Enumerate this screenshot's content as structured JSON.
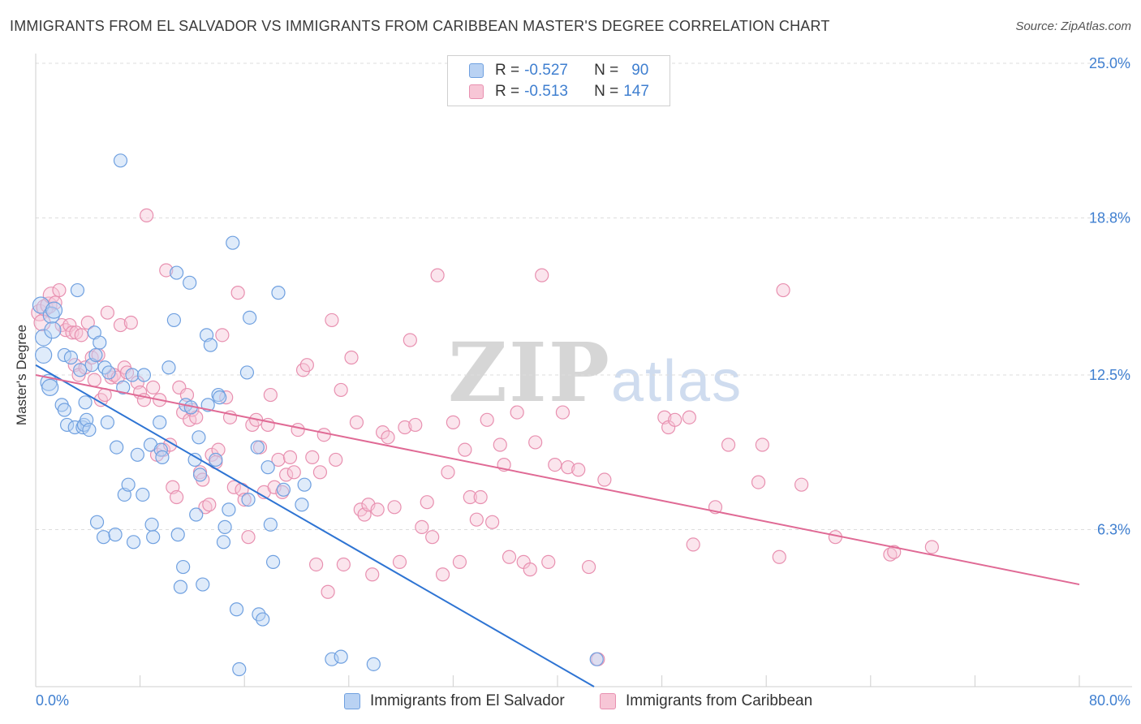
{
  "header": {
    "title": "IMMIGRANTS FROM EL SALVADOR VS IMMIGRANTS FROM CARIBBEAN MASTER'S DEGREE CORRELATION CHART",
    "source": "Source: ZipAtlas.com"
  },
  "watermark": {
    "part1": "ZIP",
    "part2": "atlas"
  },
  "colors": {
    "blue": "#6fa0e0",
    "blue_fill": "#b9d2f3",
    "blue_line": "#2e74d3",
    "pink": "#e890b0",
    "pink_fill": "#f7c6d6",
    "pink_line": "#e06a95",
    "accent_text": "#3f7fd0",
    "grid": "#dddddd"
  },
  "legend": {
    "rows": [
      {
        "r_label": "R =",
        "r_value": "-0.527",
        "n_label": "N =",
        "n_value": "90"
      },
      {
        "r_label": "R =",
        "r_value": "-0.513",
        "n_label": "N =",
        "n_value": "147"
      }
    ]
  },
  "bottom_legend": {
    "series1": "Immigrants from El Salvador",
    "series2": "Immigrants from Caribbean"
  },
  "chart_data": {
    "type": "scatter",
    "title": "IMMIGRANTS FROM EL SALVADOR VS IMMIGRANTS FROM CARIBBEAN MASTER'S DEGREE CORRELATION CHART",
    "xlabel": "",
    "ylabel": "Master's Degree",
    "xlim": [
      0,
      80
    ],
    "ylim": [
      0,
      25
    ],
    "x_tick_labels": [
      "0.0%",
      "80.0%"
    ],
    "y_ticks": [
      6.3,
      12.5,
      18.8,
      25.0
    ],
    "y_tick_labels": [
      "6.3%",
      "12.5%",
      "18.8%",
      "25.0%"
    ],
    "grid": true,
    "series": [
      {
        "name": "Immigrants from El Salvador",
        "R": -0.527,
        "N": 90,
        "trend": {
          "x": [
            0,
            42.8
          ],
          "y": [
            12.9,
            0
          ]
        },
        "points": [
          [
            0.4,
            15.3
          ],
          [
            0.6,
            14.0
          ],
          [
            0.6,
            13.3
          ],
          [
            1.0,
            12.2
          ],
          [
            1.1,
            12.0
          ],
          [
            1.2,
            14.9
          ],
          [
            1.3,
            14.3
          ],
          [
            1.4,
            15.1
          ],
          [
            2.0,
            11.3
          ],
          [
            2.2,
            13.3
          ],
          [
            2.2,
            11.1
          ],
          [
            2.4,
            10.5
          ],
          [
            2.7,
            13.2
          ],
          [
            3.0,
            10.4
          ],
          [
            3.2,
            15.9
          ],
          [
            3.4,
            12.7
          ],
          [
            3.6,
            10.4
          ],
          [
            3.7,
            10.5
          ],
          [
            3.8,
            11.4
          ],
          [
            3.9,
            10.7
          ],
          [
            4.1,
            10.3
          ],
          [
            4.3,
            12.9
          ],
          [
            4.5,
            14.2
          ],
          [
            4.6,
            13.3
          ],
          [
            4.7,
            6.6
          ],
          [
            4.9,
            13.8
          ],
          [
            5.2,
            6.0
          ],
          [
            5.3,
            12.8
          ],
          [
            5.5,
            10.6
          ],
          [
            5.6,
            12.6
          ],
          [
            6.1,
            6.1
          ],
          [
            6.2,
            9.6
          ],
          [
            6.5,
            21.1
          ],
          [
            6.7,
            12.0
          ],
          [
            6.8,
            7.7
          ],
          [
            7.1,
            8.1
          ],
          [
            7.4,
            12.5
          ],
          [
            7.5,
            5.8
          ],
          [
            7.8,
            9.3
          ],
          [
            8.2,
            7.7
          ],
          [
            8.3,
            12.5
          ],
          [
            8.8,
            9.7
          ],
          [
            8.9,
            6.5
          ],
          [
            9.0,
            6.0
          ],
          [
            9.5,
            10.6
          ],
          [
            9.6,
            9.5
          ],
          [
            9.7,
            9.2
          ],
          [
            10.2,
            12.8
          ],
          [
            10.6,
            14.7
          ],
          [
            10.8,
            16.6
          ],
          [
            10.9,
            6.1
          ],
          [
            11.1,
            4.0
          ],
          [
            11.3,
            4.8
          ],
          [
            11.5,
            11.3
          ],
          [
            11.8,
            16.2
          ],
          [
            11.9,
            11.2
          ],
          [
            12.2,
            9.1
          ],
          [
            12.3,
            6.9
          ],
          [
            12.5,
            10.0
          ],
          [
            12.6,
            8.5
          ],
          [
            12.8,
            4.1
          ],
          [
            13.1,
            14.1
          ],
          [
            13.2,
            11.3
          ],
          [
            13.4,
            13.7
          ],
          [
            13.8,
            9.1
          ],
          [
            14.0,
            11.7
          ],
          [
            14.1,
            11.6
          ],
          [
            14.4,
            5.8
          ],
          [
            14.5,
            6.4
          ],
          [
            14.8,
            7.1
          ],
          [
            15.1,
            17.8
          ],
          [
            15.4,
            3.1
          ],
          [
            15.6,
            0.7
          ],
          [
            16.2,
            12.6
          ],
          [
            16.3,
            7.5
          ],
          [
            16.4,
            14.8
          ],
          [
            17.0,
            9.6
          ],
          [
            17.1,
            2.9
          ],
          [
            17.4,
            2.7
          ],
          [
            17.8,
            8.8
          ],
          [
            18.0,
            6.5
          ],
          [
            18.2,
            5.0
          ],
          [
            18.6,
            15.8
          ],
          [
            19.0,
            7.9
          ],
          [
            20.4,
            7.3
          ],
          [
            20.6,
            8.1
          ],
          [
            22.7,
            1.1
          ],
          [
            23.4,
            1.2
          ],
          [
            25.9,
            0.9
          ],
          [
            43.0,
            1.1
          ]
        ]
      },
      {
        "name": "Immigrants from Caribbean",
        "R": -0.513,
        "N": 147,
        "trend": {
          "x": [
            0,
            80
          ],
          "y": [
            12.5,
            4.1
          ]
        },
        "points": [
          [
            0.3,
            15.0
          ],
          [
            0.5,
            14.6
          ],
          [
            0.7,
            15.2
          ],
          [
            1.0,
            15.3
          ],
          [
            1.2,
            15.7
          ],
          [
            1.5,
            15.4
          ],
          [
            1.8,
            15.9
          ],
          [
            2.0,
            14.5
          ],
          [
            2.3,
            14.3
          ],
          [
            2.6,
            14.5
          ],
          [
            2.8,
            14.2
          ],
          [
            3.0,
            12.9
          ],
          [
            3.1,
            14.2
          ],
          [
            3.3,
            12.5
          ],
          [
            3.5,
            14.1
          ],
          [
            3.8,
            12.8
          ],
          [
            4.0,
            14.6
          ],
          [
            4.3,
            13.2
          ],
          [
            4.5,
            12.3
          ],
          [
            4.8,
            13.3
          ],
          [
            5.0,
            11.5
          ],
          [
            5.3,
            11.7
          ],
          [
            5.5,
            15.0
          ],
          [
            5.8,
            12.4
          ],
          [
            6.0,
            12.5
          ],
          [
            6.3,
            12.4
          ],
          [
            6.5,
            14.5
          ],
          [
            6.8,
            12.8
          ],
          [
            7.0,
            12.6
          ],
          [
            7.3,
            14.6
          ],
          [
            7.8,
            12.2
          ],
          [
            8.0,
            11.8
          ],
          [
            8.3,
            11.5
          ],
          [
            8.5,
            18.9
          ],
          [
            9.0,
            12.0
          ],
          [
            9.3,
            9.3
          ],
          [
            9.5,
            11.5
          ],
          [
            9.8,
            9.5
          ],
          [
            10.0,
            16.7
          ],
          [
            10.3,
            9.7
          ],
          [
            10.5,
            8.0
          ],
          [
            10.8,
            7.6
          ],
          [
            11.0,
            12.0
          ],
          [
            11.3,
            11.0
          ],
          [
            11.6,
            11.7
          ],
          [
            11.8,
            10.7
          ],
          [
            12.0,
            11.1
          ],
          [
            12.3,
            10.8
          ],
          [
            12.6,
            8.6
          ],
          [
            12.8,
            8.3
          ],
          [
            13.0,
            7.2
          ],
          [
            13.3,
            7.3
          ],
          [
            13.5,
            9.3
          ],
          [
            13.8,
            9.0
          ],
          [
            14.0,
            9.5
          ],
          [
            14.3,
            14.1
          ],
          [
            14.6,
            11.6
          ],
          [
            14.9,
            10.8
          ],
          [
            15.2,
            8.0
          ],
          [
            15.5,
            15.8
          ],
          [
            15.8,
            7.9
          ],
          [
            16.0,
            7.5
          ],
          [
            16.3,
            6.0
          ],
          [
            16.6,
            10.5
          ],
          [
            16.9,
            10.7
          ],
          [
            17.2,
            9.6
          ],
          [
            17.5,
            7.8
          ],
          [
            17.8,
            10.5
          ],
          [
            18.0,
            11.7
          ],
          [
            18.3,
            8.0
          ],
          [
            18.6,
            9.1
          ],
          [
            18.9,
            7.8
          ],
          [
            19.2,
            8.5
          ],
          [
            19.5,
            9.2
          ],
          [
            19.8,
            8.6
          ],
          [
            20.1,
            10.3
          ],
          [
            20.5,
            12.7
          ],
          [
            20.8,
            12.9
          ],
          [
            21.2,
            9.2
          ],
          [
            21.5,
            4.9
          ],
          [
            21.8,
            8.6
          ],
          [
            22.1,
            10.1
          ],
          [
            22.4,
            3.8
          ],
          [
            22.7,
            14.7
          ],
          [
            23.0,
            9.1
          ],
          [
            23.4,
            11.9
          ],
          [
            23.6,
            4.9
          ],
          [
            24.2,
            13.2
          ],
          [
            24.6,
            10.6
          ],
          [
            24.9,
            7.1
          ],
          [
            25.2,
            6.9
          ],
          [
            25.5,
            7.3
          ],
          [
            25.8,
            4.5
          ],
          [
            26.2,
            7.1
          ],
          [
            26.6,
            10.2
          ],
          [
            27.0,
            10.0
          ],
          [
            27.5,
            7.2
          ],
          [
            27.9,
            5.0
          ],
          [
            28.3,
            10.4
          ],
          [
            28.7,
            13.9
          ],
          [
            29.1,
            10.5
          ],
          [
            29.6,
            6.4
          ],
          [
            30.0,
            7.4
          ],
          [
            30.4,
            6.0
          ],
          [
            30.8,
            16.5
          ],
          [
            31.2,
            4.5
          ],
          [
            31.6,
            8.6
          ],
          [
            32.0,
            10.6
          ],
          [
            32.5,
            5.0
          ],
          [
            32.9,
            9.5
          ],
          [
            33.3,
            7.6
          ],
          [
            33.8,
            6.7
          ],
          [
            34.1,
            7.6
          ],
          [
            34.6,
            10.7
          ],
          [
            35.0,
            6.6
          ],
          [
            35.6,
            9.7
          ],
          [
            35.9,
            8.9
          ],
          [
            36.3,
            5.2
          ],
          [
            36.9,
            11.0
          ],
          [
            37.4,
            5.0
          ],
          [
            37.9,
            4.7
          ],
          [
            38.3,
            9.8
          ],
          [
            38.8,
            16.5
          ],
          [
            39.3,
            5.0
          ],
          [
            39.8,
            8.9
          ],
          [
            40.4,
            11.0
          ],
          [
            40.8,
            8.8
          ],
          [
            41.6,
            8.7
          ],
          [
            42.4,
            4.8
          ],
          [
            43.1,
            1.1
          ],
          [
            43.6,
            8.3
          ],
          [
            48.2,
            10.8
          ],
          [
            48.5,
            10.4
          ],
          [
            49.0,
            10.7
          ],
          [
            50.1,
            10.8
          ],
          [
            50.4,
            5.7
          ],
          [
            52.1,
            7.2
          ],
          [
            53.1,
            9.7
          ],
          [
            55.4,
            8.2
          ],
          [
            55.7,
            9.7
          ],
          [
            57.0,
            5.2
          ],
          [
            57.3,
            15.9
          ],
          [
            58.7,
            8.1
          ],
          [
            61.3,
            6.0
          ],
          [
            65.5,
            5.3
          ],
          [
            65.8,
            5.4
          ],
          [
            68.7,
            5.6
          ]
        ]
      }
    ]
  }
}
